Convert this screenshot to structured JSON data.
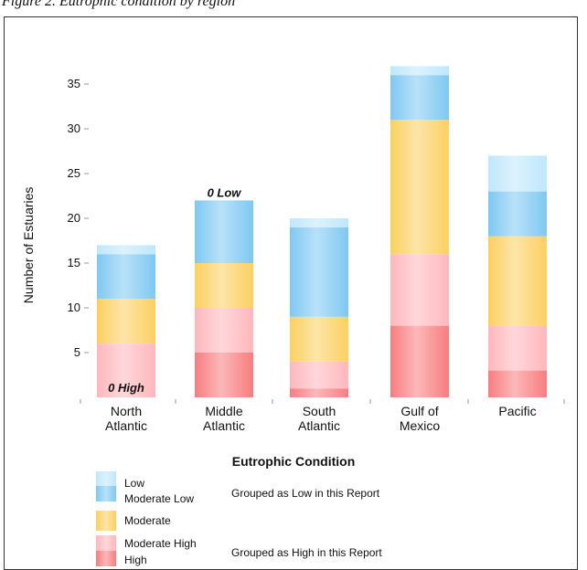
{
  "caption": "Figure 2. Eutrophic condition by region",
  "legend_title": "Eutrophic Condition",
  "legend": {
    "items": [
      {
        "label": "Low",
        "color": "#bfe7fb"
      },
      {
        "label": "Moderate Low",
        "color": "#7fc8f2"
      },
      {
        "label": "Moderate",
        "color": "#fcd060"
      },
      {
        "label": "Moderate High",
        "color": "#ffb7bc"
      },
      {
        "label": "High",
        "color": "#f77d80"
      }
    ],
    "group_low": "Grouped as Low in this Report",
    "group_high": "Grouped as High in this Report"
  },
  "chart_data": {
    "type": "bar",
    "stacked": true,
    "categories": [
      "North\nAtlantic",
      "Middle\nAtlantic",
      "South\nAtlantic",
      "Gulf of\nMexico",
      "Pacific"
    ],
    "series": [
      {
        "name": "High",
        "color": "#f77d80",
        "values": [
          0,
          5,
          1,
          8,
          3
        ]
      },
      {
        "name": "Moderate High",
        "color": "#ffb7bc",
        "values": [
          6,
          5,
          3,
          8,
          5
        ]
      },
      {
        "name": "Moderate",
        "color": "#fcd060",
        "values": [
          5,
          5,
          5,
          15,
          10
        ]
      },
      {
        "name": "Moderate Low",
        "color": "#7fc8f2",
        "values": [
          5,
          7,
          10,
          5,
          5
        ]
      },
      {
        "name": "Low",
        "color": "#bfe7fb",
        "values": [
          1,
          0,
          1,
          1,
          4
        ]
      }
    ],
    "ylabel": "Number of Estuaries",
    "xlabel": "",
    "ylim": [
      0,
      38
    ],
    "yticks": [
      5,
      10,
      15,
      20,
      25,
      30,
      35
    ],
    "annotations": [
      {
        "category": "Middle\nAtlantic",
        "text": "0 Low",
        "position": "top"
      },
      {
        "category": "North\nAtlantic",
        "text": "0 High",
        "position": "bottom"
      }
    ],
    "grid": false
  }
}
